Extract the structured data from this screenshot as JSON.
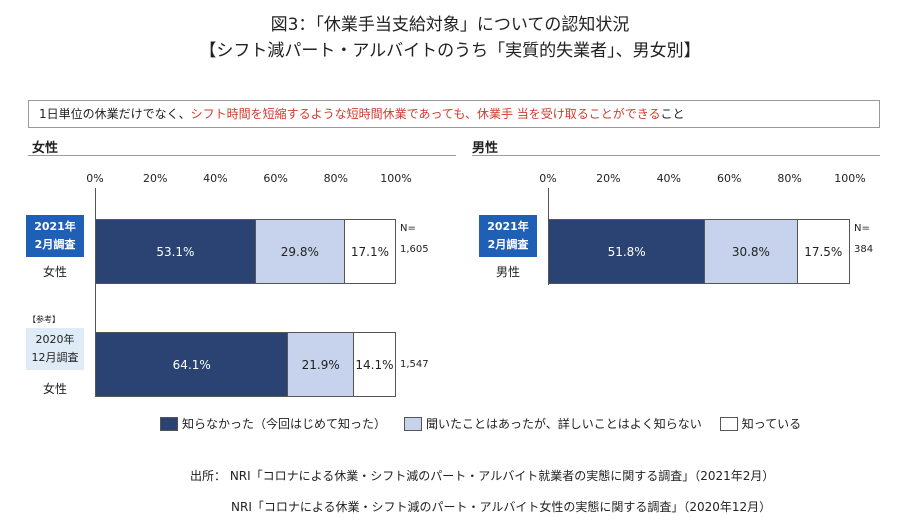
{
  "title_line1": "図3：「休業手当支給対象」についての認知状況",
  "title_line2": "【シフト減パート・アルバイトのうち「実質的失業者」、男女別】",
  "note": {
    "part1": "1日単位の休業だけでなく、",
    "part2_red": "シフト時間を短縮するような短時間休業であっても、休業手 当を受け取ることができる",
    "part3": "こと"
  },
  "colors": {
    "accent": "#1f5fb5",
    "series0": "#2a4372",
    "series1": "#c7d3ec",
    "series2": "#ffffff",
    "note_red": "#d23a2f"
  },
  "chart_data": [
    {
      "type": "bar",
      "orientation": "horizontal",
      "stacked": true,
      "panel_title": "女性",
      "xlim": [
        0,
        100
      ],
      "ticks": [
        "0%",
        "20%",
        "40%",
        "60%",
        "80%",
        "100%"
      ],
      "legend": [
        "知らなかった（今回はじめて知った）",
        "聞いたことはあったが、詳しいことはよく知らない",
        "知っている"
      ],
      "rows": [
        {
          "badge": "2021年\n2月調査",
          "sub": "女性",
          "values": [
            53.1,
            29.8,
            17.1
          ],
          "labels": [
            "53.1%",
            "29.8%",
            "17.1%"
          ],
          "n_label": "N=",
          "n": "1,605"
        },
        {
          "ref_tag": "【参考】",
          "badge": "2020年\n12月調査",
          "sub": "女性",
          "values": [
            64.1,
            21.9,
            14.1
          ],
          "labels": [
            "64.1%",
            "21.9%",
            "14.1%"
          ],
          "n": "1,547"
        }
      ]
    },
    {
      "type": "bar",
      "orientation": "horizontal",
      "stacked": true,
      "panel_title": "男性",
      "xlim": [
        0,
        100
      ],
      "ticks": [
        "0%",
        "20%",
        "40%",
        "60%",
        "80%",
        "100%"
      ],
      "rows": [
        {
          "badge": "2021年\n2月調査",
          "sub": "男性",
          "values": [
            51.8,
            30.8,
            17.5
          ],
          "labels": [
            "51.8%",
            "30.8%",
            "17.5%"
          ],
          "n_label": "N=",
          "n": "384"
        }
      ]
    }
  ],
  "source": {
    "line1": "出所： NRI「コロナによる休業・シフト減のパート・アルバイト就業者の実態に関する調査」（2021年2月）",
    "line2": "NRI「コロナによる休業・シフト減のパート・アルバイト女性の実態に関する調査」（2020年12月）"
  }
}
